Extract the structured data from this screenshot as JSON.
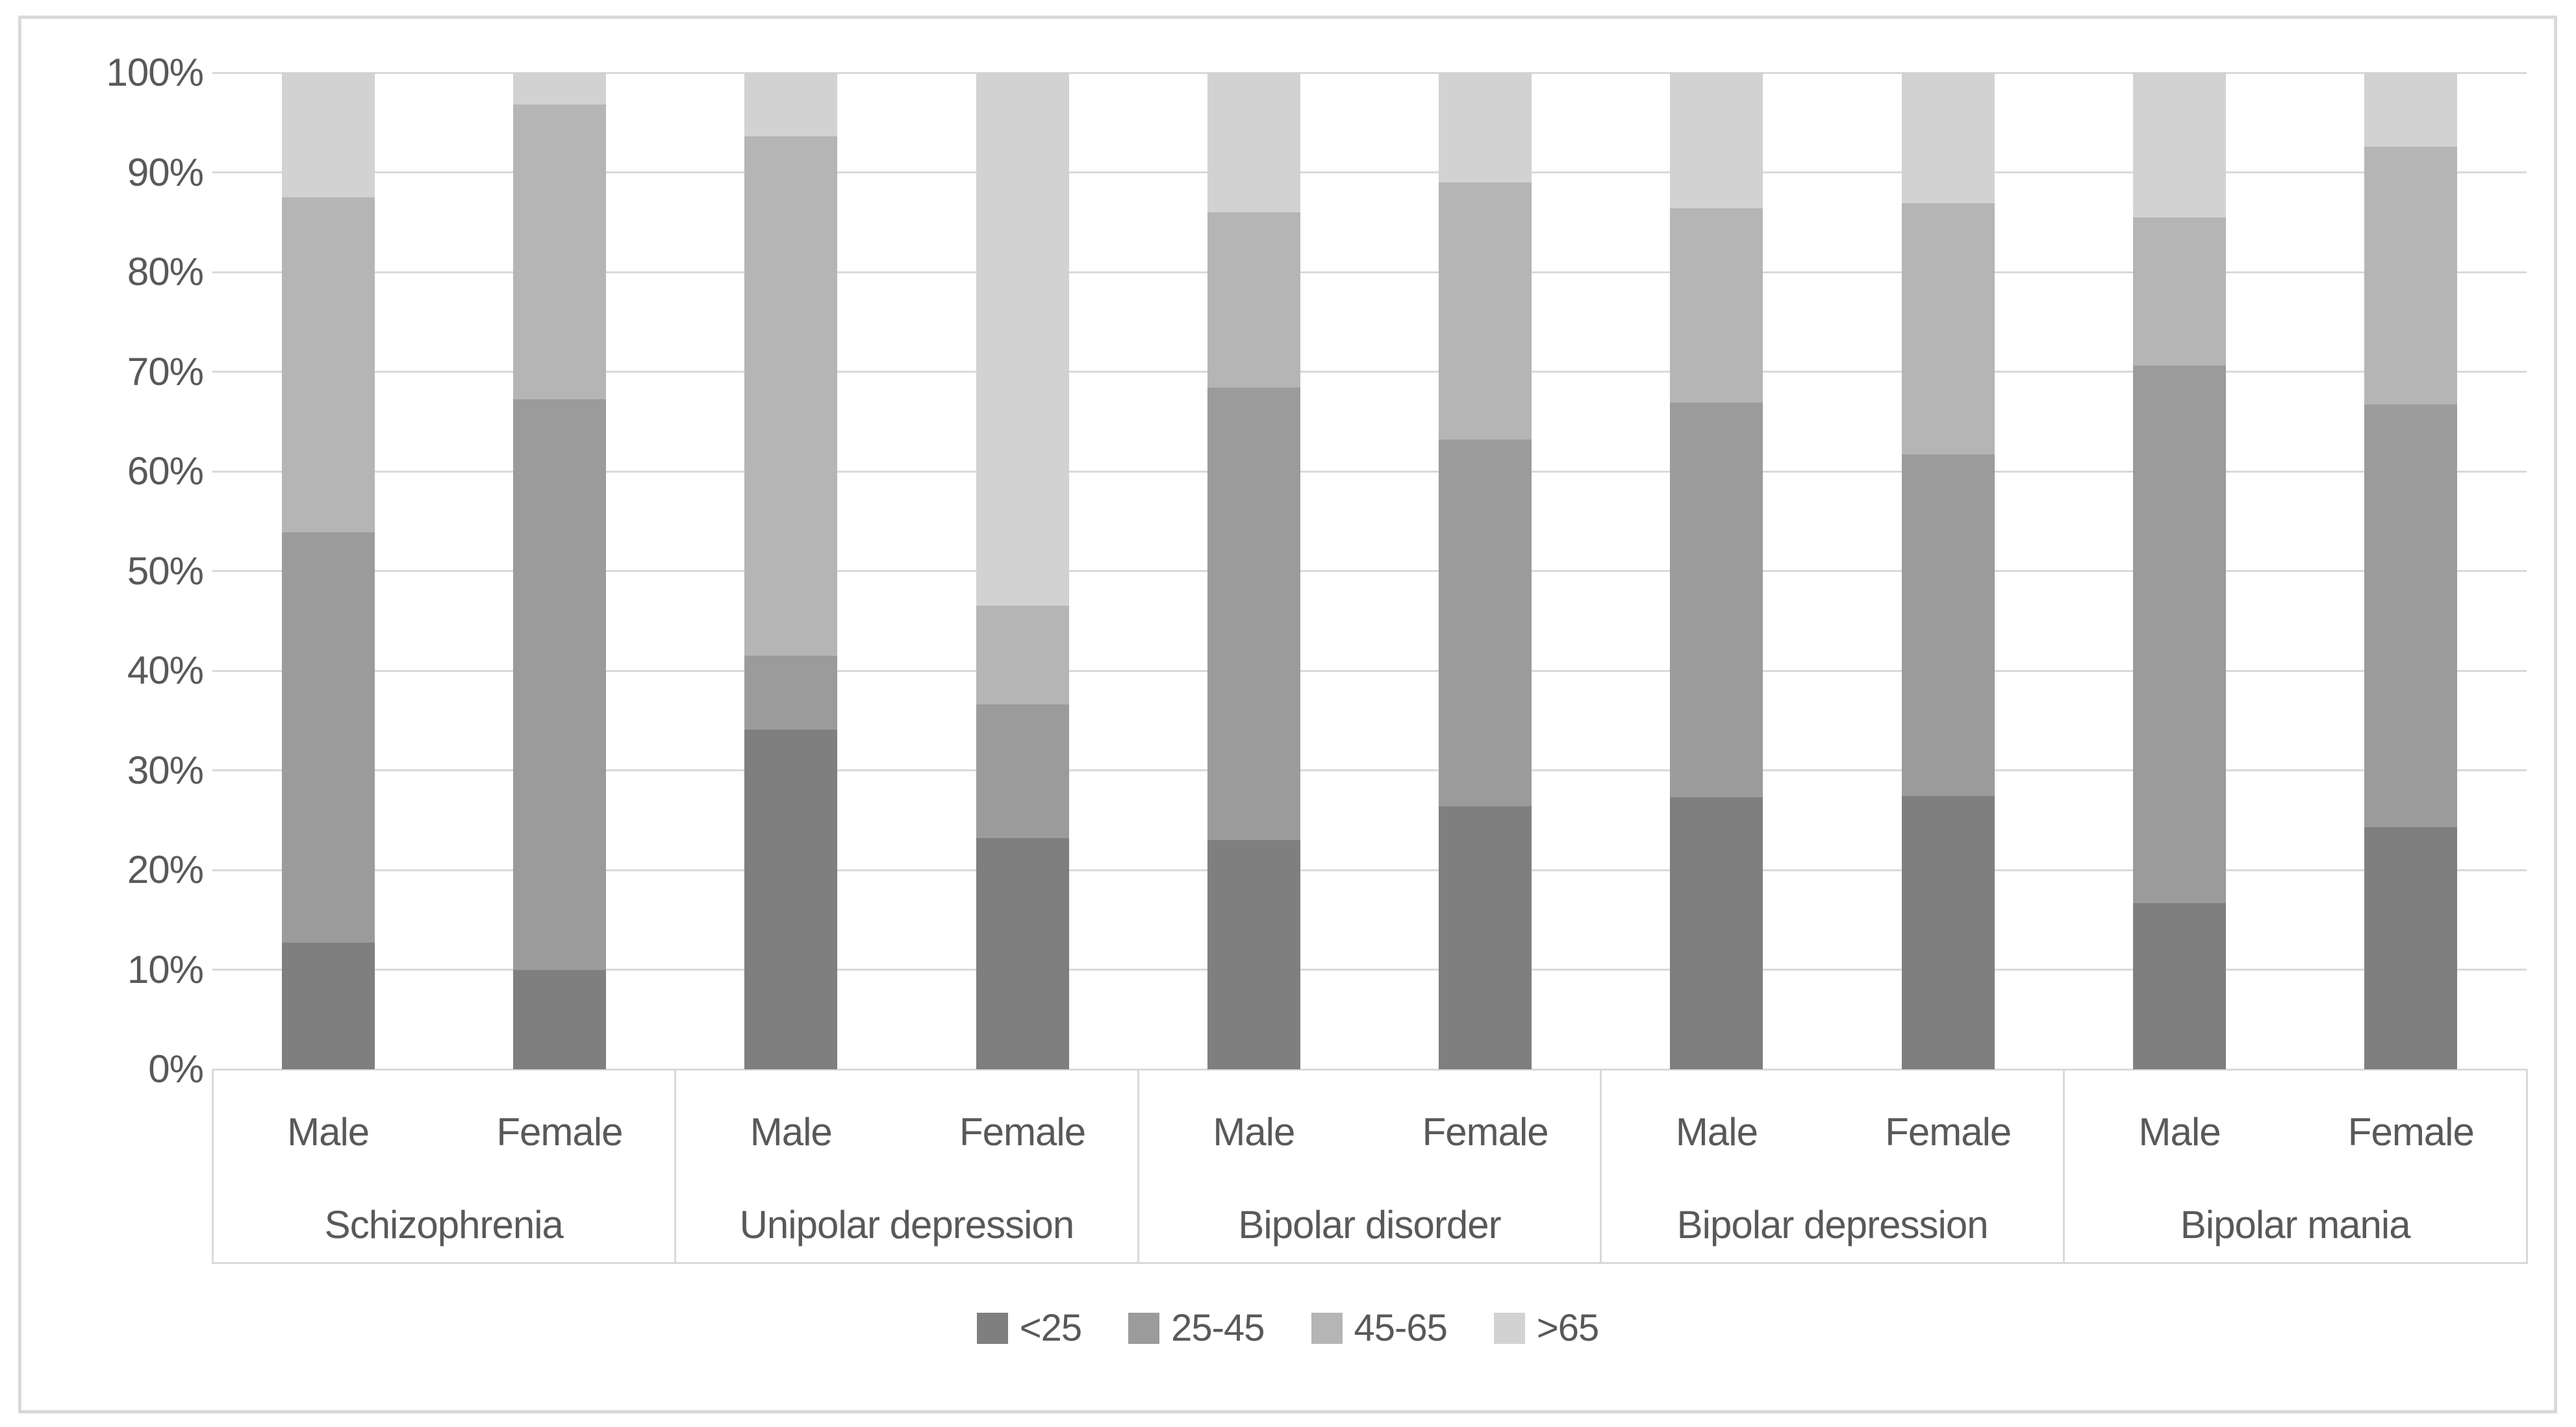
{
  "chart_data": {
    "type": "bar",
    "subtype": "stacked-100",
    "title": "",
    "xlabel": "",
    "ylabel": "",
    "ylim": [
      0,
      100
    ],
    "grid": "horizontal",
    "y_ticks": [
      "0%",
      "10%",
      "20%",
      "30%",
      "40%",
      "50%",
      "60%",
      "70%",
      "80%",
      "90%",
      "100%"
    ],
    "groups": [
      "Schizophrenia",
      "Unipolar depression",
      "Bipolar disorder",
      "Bipolar depression",
      "Bipolar mania"
    ],
    "genders": [
      "Male",
      "Female"
    ],
    "categories": [
      "Schizophrenia Male",
      "Schizophrenia Female",
      "Unipolar depression Male",
      "Unipolar depression Female",
      "Bipolar disorder Male",
      "Bipolar disorder Female",
      "Bipolar depression Male",
      "Bipolar depression Female",
      "Bipolar mania Male",
      "Bipolar mania Female"
    ],
    "series": [
      {
        "name": "<25",
        "color": "#7f7f7f",
        "values": [
          12.7,
          10.0,
          34.1,
          23.2,
          23.0,
          26.4,
          27.3,
          27.4,
          16.7,
          24.3
        ]
      },
      {
        "name": "25-45",
        "color": "#9b9b9b",
        "values": [
          41.2,
          57.2,
          7.4,
          13.4,
          45.4,
          36.8,
          39.6,
          34.3,
          53.9,
          42.4
        ]
      },
      {
        "name": "45-65",
        "color": "#b5b5b5",
        "values": [
          33.6,
          29.6,
          52.1,
          9.9,
          17.6,
          25.8,
          19.5,
          25.2,
          14.9,
          25.9
        ]
      },
      {
        "name": ">65",
        "color": "#d2d2d2",
        "values": [
          12.5,
          3.2,
          6.4,
          53.5,
          14.0,
          11.0,
          13.6,
          13.1,
          14.5,
          7.4
        ]
      }
    ],
    "legend_position": "bottom",
    "legend_entries": [
      "<25",
      "25-45",
      "45-65",
      ">65"
    ]
  },
  "style": {
    "gridline_color": "#d9d9d9",
    "axis_text_color": "#595959",
    "frame_border_color": "#d9d9d9",
    "background_color": "#ffffff"
  }
}
